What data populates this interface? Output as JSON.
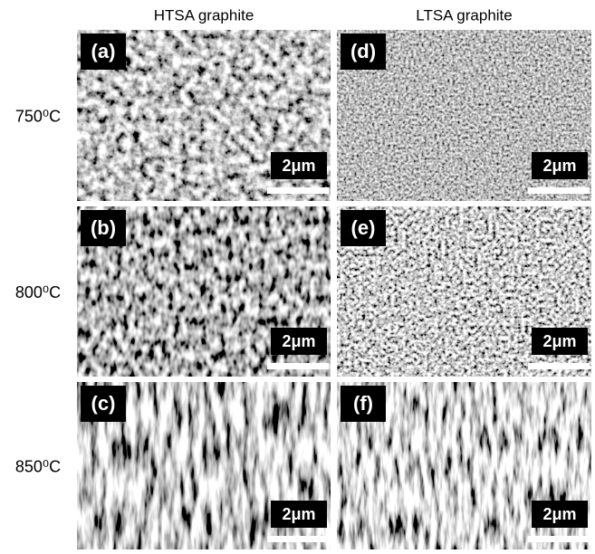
{
  "column_headers": [
    "HTSA graphite",
    "LTSA graphite"
  ],
  "rows": [
    {
      "label": "750⁰C",
      "panels": [
        {
          "label": "(a)",
          "scale_bar": "2μm"
        },
        {
          "label": "(d)",
          "scale_bar": "2μm"
        }
      ]
    },
    {
      "label": "800⁰C",
      "panels": [
        {
          "label": "(b)",
          "scale_bar": "2μm"
        },
        {
          "label": "(e)",
          "scale_bar": "2μm"
        }
      ]
    },
    {
      "label": "850⁰C",
      "panels": [
        {
          "label": "(c)",
          "scale_bar": "2μm"
        },
        {
          "label": "(f)",
          "scale_bar": "2μm"
        }
      ]
    }
  ]
}
